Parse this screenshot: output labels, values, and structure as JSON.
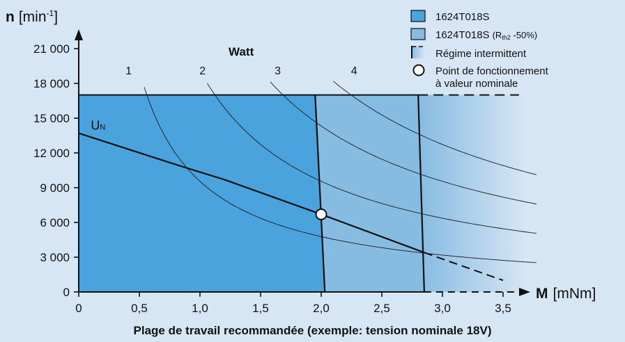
{
  "chart_data": {
    "type": "line",
    "title": "",
    "caption": "Plage de travail recommandée (exemple: tension nominale 18V)",
    "y_axis": {
      "label_bold": "n",
      "label_unit_prefix": "[min",
      "label_unit_sup": "-1",
      "label_unit_suffix": "]",
      "range": [
        0,
        22000
      ],
      "ticks": [
        0,
        3000,
        6000,
        9000,
        12000,
        15000,
        18000,
        21000
      ],
      "tick_labels": [
        "0",
        "3 000",
        "6 000",
        "9 000",
        "12 000",
        "15 000",
        "18 000",
        "21 000"
      ]
    },
    "x_axis": {
      "label_bold": "M",
      "label_unit": "[mNm]",
      "range": [
        0,
        3.7
      ],
      "ticks": [
        0,
        0.5,
        1.0,
        1.5,
        2.0,
        2.5,
        3.0,
        3.5
      ],
      "tick_labels": [
        "0",
        "0,5",
        "1,0",
        "1,5",
        "2,0",
        "2,5",
        "3,0",
        "3,5"
      ]
    },
    "regions": {
      "speed_limit": 17000,
      "continuous_torque_top": 1.95,
      "continuous_torque_bottom": 2.03,
      "rth_torque_top": 2.8,
      "rth_torque_bottom": 2.85,
      "intermittent_end_torque": 3.7,
      "dashed_limit_end_torque": 3.5,
      "colors": {
        "continuous": "#4aa3dc",
        "rth": "#86bbe2",
        "intermittent_start": "#86bbe2",
        "intermittent_end": "#d7e6f4",
        "background": "#d7e6f4"
      }
    },
    "power_curves": {
      "label": "Watt",
      "series": [
        {
          "name": "1",
          "watts": 1
        },
        {
          "name": "2",
          "watts": 2
        },
        {
          "name": "3",
          "watts": 3
        },
        {
          "name": "4",
          "watts": 4
        }
      ],
      "x_range": [
        0.4,
        3.85
      ]
    },
    "speed_line": {
      "name": "U",
      "name_sub": "N",
      "points": [
        [
          0,
          13700
        ],
        [
          0.8,
          11000
        ],
        [
          1.2,
          9700
        ],
        [
          2.0,
          6700
        ],
        [
          2.85,
          3400
        ]
      ],
      "dashed_points": [
        [
          2.85,
          3400
        ],
        [
          3.5,
          1000
        ]
      ]
    },
    "operating_point": {
      "x": 2.0,
      "y": 6700
    },
    "legend": {
      "placement": "top-right",
      "items": [
        {
          "kind": "swatch-continuous",
          "text": "1624T018S"
        },
        {
          "kind": "swatch-rth",
          "text": "1624T018S",
          "sub_prefix": "(R",
          "sub": "th2",
          "sub_suffix": " -50%)"
        },
        {
          "kind": "swatch-intermittent",
          "text": "Régime intermittent"
        },
        {
          "kind": "circle",
          "text": "Point de fonctionnement",
          "text2": "à valeur nominale"
        }
      ]
    }
  }
}
